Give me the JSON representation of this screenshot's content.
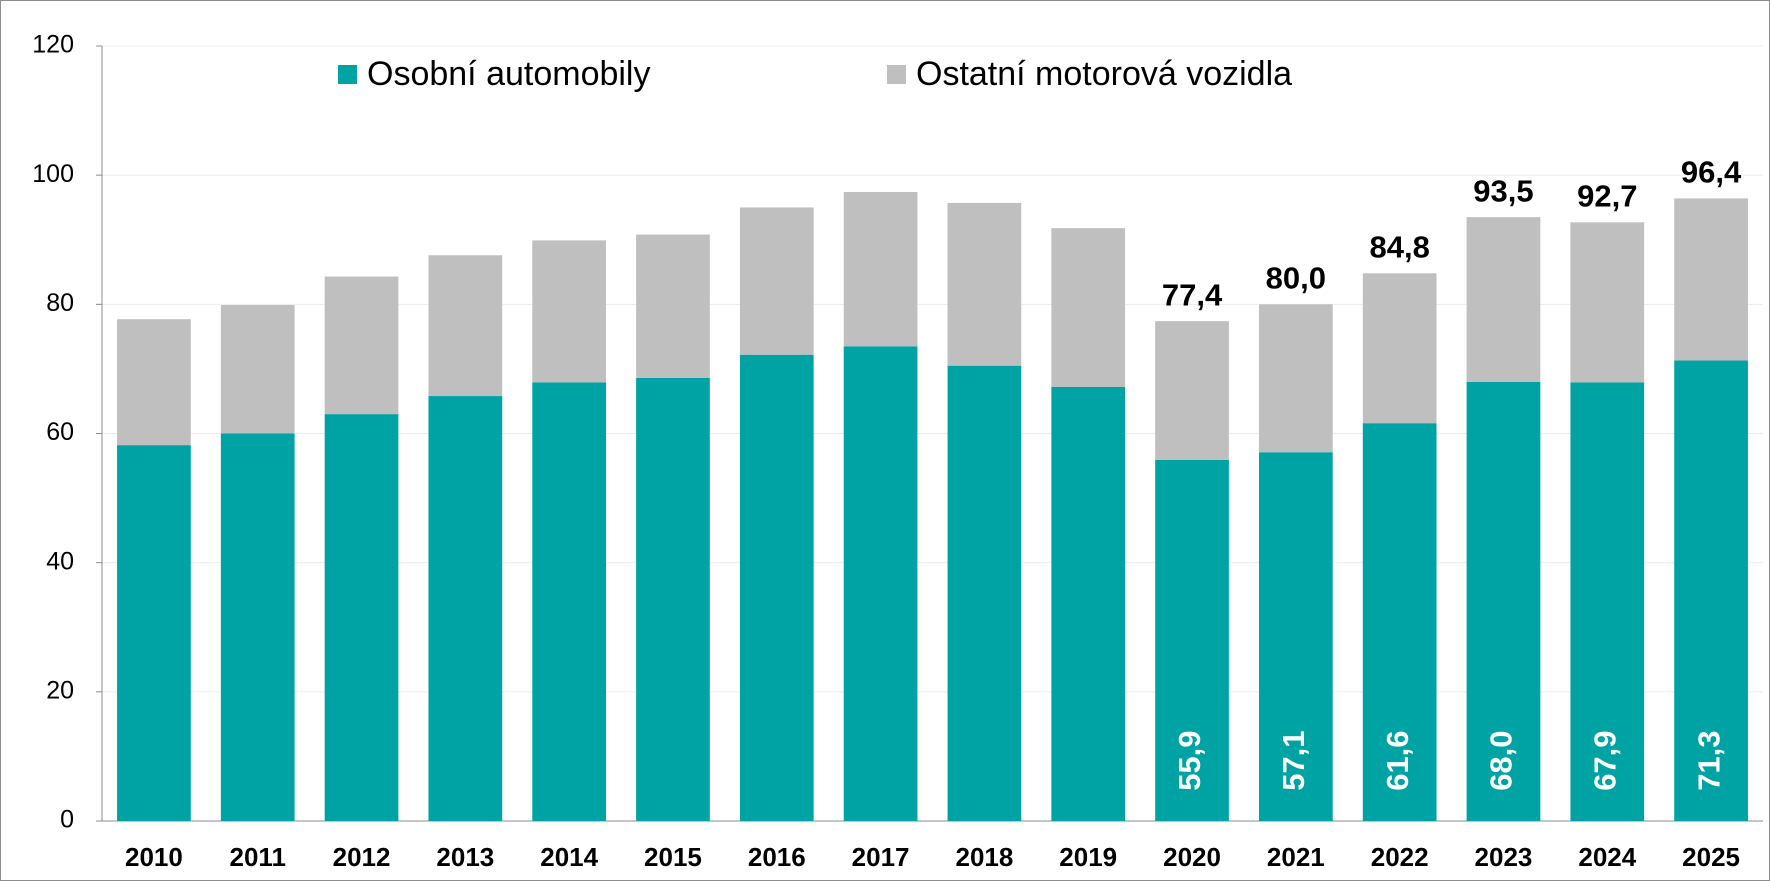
{
  "chart_data": {
    "type": "stacked_bar",
    "categories": [
      "2010",
      "2011",
      "2012",
      "2013",
      "2014",
      "2015",
      "2016",
      "2017",
      "2018",
      "2019",
      "2020",
      "2021",
      "2022",
      "2023",
      "2024",
      "2025"
    ],
    "series": [
      {
        "name": "Osobní automobily",
        "color": "#00a3a3",
        "values": [
          58.2,
          60.0,
          63.0,
          65.8,
          67.9,
          68.6,
          72.2,
          73.5,
          70.5,
          67.2,
          55.9,
          57.1,
          61.6,
          68.0,
          67.9,
          71.3
        ],
        "value_labels": [
          null,
          null,
          null,
          null,
          null,
          null,
          null,
          null,
          null,
          null,
          "55,9",
          "57,1",
          "61,6",
          "68,0",
          "67,9",
          "71,3"
        ]
      },
      {
        "name": "Ostatní motorová vozidla",
        "color": "#bfbfbf",
        "values": [
          19.5,
          19.9,
          21.3,
          21.8,
          22.0,
          22.2,
          22.8,
          23.9,
          25.2,
          24.6,
          21.5,
          22.9,
          23.2,
          25.5,
          24.8,
          25.1
        ]
      }
    ],
    "total_labels": [
      null,
      null,
      null,
      null,
      null,
      null,
      null,
      null,
      null,
      null,
      "77,4",
      "80,0",
      "84,8",
      "93,5",
      "92,7",
      "96,4"
    ],
    "ylim": [
      0,
      120
    ],
    "yticks": [
      0,
      20,
      40,
      60,
      80,
      100,
      120
    ],
    "grid": true,
    "legend": "top"
  }
}
